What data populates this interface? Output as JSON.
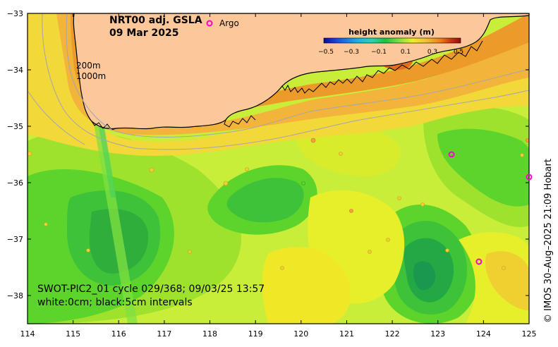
{
  "title": {
    "product": "NRT00 adj. GSLA",
    "date": "09 Mar 2025"
  },
  "legend": {
    "argo_label": "Argo",
    "argo_color": "#ff00cc"
  },
  "depth_contours": {
    "shallow": "200m",
    "deep": "1000m"
  },
  "colorbar": {
    "title": "height anomaly (m)",
    "ticks": [
      "−0.5",
      "−0.3",
      "−0.1",
      "0.1",
      "0.3",
      "0.5"
    ],
    "colors": [
      "#0a0a9a",
      "#1a4fd6",
      "#1fb0e8",
      "#2fd0b0",
      "#20c040",
      "#80e040",
      "#f0f020",
      "#f0c030",
      "#f08018",
      "#d03010",
      "#a00808"
    ]
  },
  "caption": {
    "line1": "SWOT-PIC2_01 cycle 029/368; 09/03/25 13:57",
    "line2": "white:0cm; black:5cm intervals"
  },
  "credit": "© IMOS 30–Aug–2025 21:09 Hobart",
  "axes": {
    "x_ticks": [
      "114",
      "115",
      "116",
      "117",
      "118",
      "119",
      "120",
      "121",
      "122",
      "123",
      "124",
      "125"
    ],
    "y_ticks": [
      "−33",
      "−34",
      "−35",
      "−36",
      "−37",
      "−38"
    ]
  },
  "map_data": {
    "lon_range": [
      114,
      125
    ],
    "lat_range": [
      -38.5,
      -33
    ],
    "argo_floats": [
      {
        "lon": 123.3,
        "lat": -35.5
      },
      {
        "lon": 125.0,
        "lat": -35.9
      },
      {
        "lon": 123.9,
        "lat": -37.4
      }
    ],
    "colors": {
      "land": "#fcc89a",
      "coast": "#000000",
      "bathy": "#a8a8a8",
      "swot_track": "#60e030"
    }
  }
}
